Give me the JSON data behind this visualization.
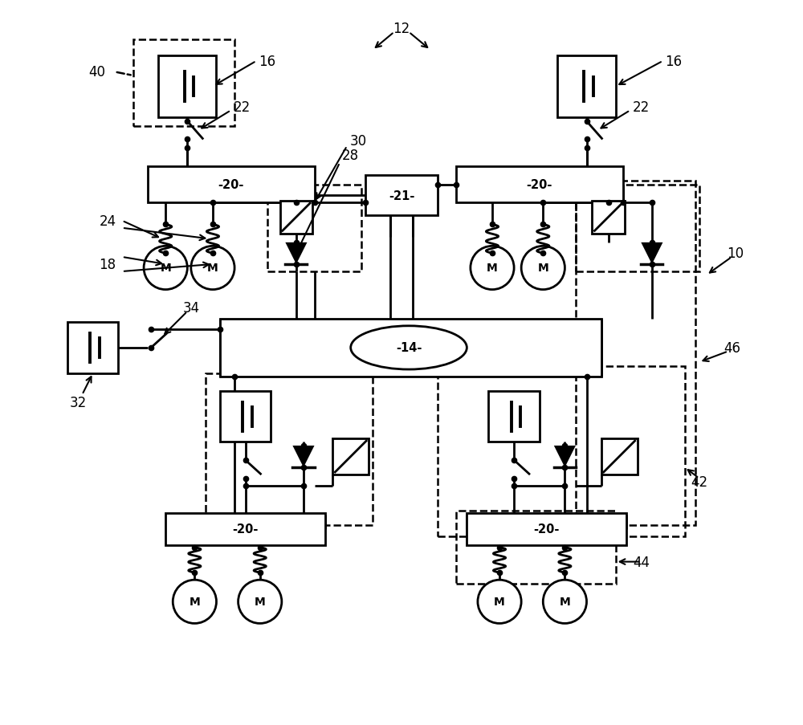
{
  "bg_color": "#ffffff",
  "lw": 2.0,
  "dlw": 1.8,
  "fig_w": 10.0,
  "fig_h": 9.04,
  "xlim": [
    0,
    100
  ],
  "ylim": [
    0,
    100
  ]
}
